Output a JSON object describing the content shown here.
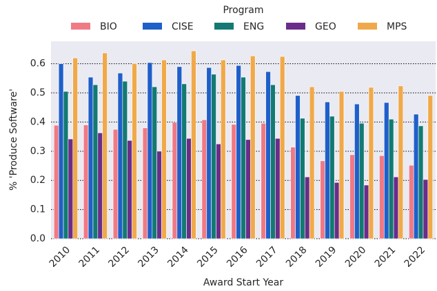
{
  "chart_data": {
    "type": "bar",
    "xlabel": "Award Start Year",
    "ylabel": "% 'Produce Software'",
    "legend_title": "Program",
    "legend_position": "top",
    "categories": [
      "2010",
      "2011",
      "2012",
      "2013",
      "2014",
      "2015",
      "2016",
      "2017",
      "2018",
      "2019",
      "2020",
      "2021",
      "2022"
    ],
    "series": [
      {
        "name": "BIO",
        "color": "#ef7a85",
        "values": [
          0.389,
          0.39,
          0.375,
          0.38,
          0.399,
          0.408,
          0.392,
          0.396,
          0.314,
          0.267,
          0.288,
          0.285,
          0.252
        ]
      },
      {
        "name": "CISE",
        "color": "#1f5fc9",
        "values": [
          0.6,
          0.554,
          0.568,
          0.604,
          0.59,
          0.587,
          0.594,
          0.573,
          0.491,
          0.469,
          0.462,
          0.467,
          0.427
        ]
      },
      {
        "name": "ENG",
        "color": "#127a72",
        "values": [
          0.505,
          0.528,
          0.54,
          0.521,
          0.531,
          0.564,
          0.554,
          0.528,
          0.413,
          0.42,
          0.396,
          0.41,
          0.387
        ]
      },
      {
        "name": "GEO",
        "color": "#6a2d8a",
        "values": [
          0.342,
          0.363,
          0.337,
          0.3,
          0.344,
          0.325,
          0.34,
          0.344,
          0.212,
          0.193,
          0.184,
          0.212,
          0.203
        ]
      },
      {
        "name": "MPS",
        "color": "#f0a94a",
        "values": [
          0.62,
          0.637,
          0.601,
          0.613,
          0.644,
          0.613,
          0.627,
          0.625,
          0.521,
          0.505,
          0.519,
          0.524,
          0.491
        ]
      }
    ],
    "ylim": [
      0,
      0.677
    ],
    "yticks": [
      {
        "value": 0,
        "label": "0.0"
      },
      0.1,
      0.2,
      0.3,
      0.4,
      0.5,
      0.6
    ],
    "grid": true
  }
}
